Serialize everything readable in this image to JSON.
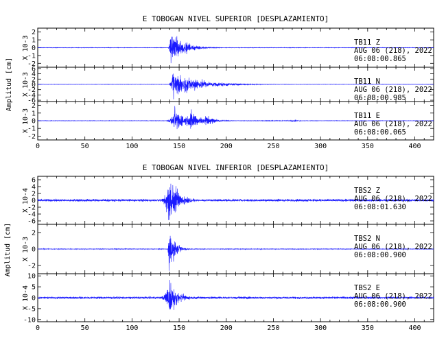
{
  "colors": {
    "trace": "#1a1aff",
    "frame": "#000000",
    "background": "#ffffff"
  },
  "chart_data": [
    {
      "type": "line",
      "title": "E TOBOGAN NIVEL SUPERIOR [DESPLAZAMIENTO]",
      "ylabel": "Amplitud [cm]",
      "xlim": [
        0,
        420
      ],
      "xticks": [
        "0",
        "50",
        "100",
        "150",
        "200",
        "250",
        "300",
        "350",
        "400"
      ],
      "panels": [
        {
          "scale_label": "X 10-3",
          "ylim": [
            -2.5,
            2.5
          ],
          "yticks": [
            "2",
            "1",
            "0",
            "-1",
            "-2"
          ],
          "annotation": [
            "TB11   Z",
            "AUG 06 (218), 2022",
            "06:08:00.865"
          ],
          "trace": {
            "noise": 0.03,
            "onset": 138,
            "bursts": [
              {
                "t": 141,
                "amp": 2.3,
                "decay": 13
              }
            ]
          }
        },
        {
          "scale_label": "X 10-3",
          "ylim": [
            -6.5,
            6.5
          ],
          "yticks": [
            "6",
            "4",
            "2",
            "0",
            "-2",
            "-4",
            "-6"
          ],
          "annotation": [
            "TB11   N",
            "AUG 06 (218), 2022",
            "06:08:00.985"
          ],
          "trace": {
            "noise": 0.06,
            "onset": 138,
            "bursts": [
              {
                "t": 143,
                "amp": 5.5,
                "decay": 25
              }
            ]
          }
        },
        {
          "scale_label": "X 10-3",
          "ylim": [
            -2.5,
            2.5
          ],
          "yticks": [
            "2",
            "1",
            "0",
            "-1",
            "-2"
          ],
          "annotation": [
            "TB11   E",
            "AUG 06 (218), 2022",
            "06:08:00.065"
          ],
          "trace": {
            "noise": 0.03,
            "onset": 135,
            "bursts": [
              {
                "t": 145,
                "amp": 2.0,
                "decay": 8
              },
              {
                "t": 162,
                "amp": 1.4,
                "decay": 10
              },
              {
                "t": 178,
                "amp": 0.7,
                "decay": 10
              },
              {
                "t": 272,
                "amp": 0.15,
                "decay": 6
              }
            ]
          }
        }
      ]
    },
    {
      "type": "line",
      "title": "E TOBOGAN NIVEL INFERIOR [DESPLAZAMIENTO]",
      "ylabel": "Amplitud [cm]",
      "xlim": [
        0,
        420
      ],
      "xticks": [
        "0",
        "50",
        "100",
        "150",
        "200",
        "250",
        "300",
        "350",
        "400"
      ],
      "panels": [
        {
          "scale_label": "X 10-4",
          "ylim": [
            -7,
            7
          ],
          "yticks": [
            "6",
            "4",
            "2",
            "0",
            "-2",
            "-4",
            "-6"
          ],
          "annotation": [
            "TBS2   Z",
            "AUG 06 (218), 2022",
            "06:08:01.630"
          ],
          "trace": {
            "noise": 0.35,
            "onset": 128,
            "bursts": [
              {
                "t": 138,
                "amp": 6.5,
                "decay": 11
              }
            ]
          }
        },
        {
          "scale_label": "X 10-3",
          "ylim": [
            -3,
            3
          ],
          "yticks": [
            "2",
            "0",
            "-2"
          ],
          "annotation": [
            "TBS2   N",
            "AUG 06 (218), 2022",
            "06:08:00.900"
          ],
          "trace": {
            "noise": 0.04,
            "onset": 137,
            "bursts": [
              {
                "t": 139,
                "amp": 2.8,
                "decay": 6
              }
            ]
          }
        },
        {
          "scale_label": "X 10-4",
          "ylim": [
            -11,
            11
          ],
          "yticks": [
            "10",
            "5",
            "0",
            "-5",
            "-10"
          ],
          "annotation": [
            "TBS2   E",
            "AUG 06 (218), 2022",
            "06:08:00.900"
          ],
          "trace": {
            "noise": 0.5,
            "onset": 128,
            "bursts": [
              {
                "t": 139,
                "amp": 9,
                "decay": 9
              }
            ]
          }
        }
      ]
    }
  ]
}
